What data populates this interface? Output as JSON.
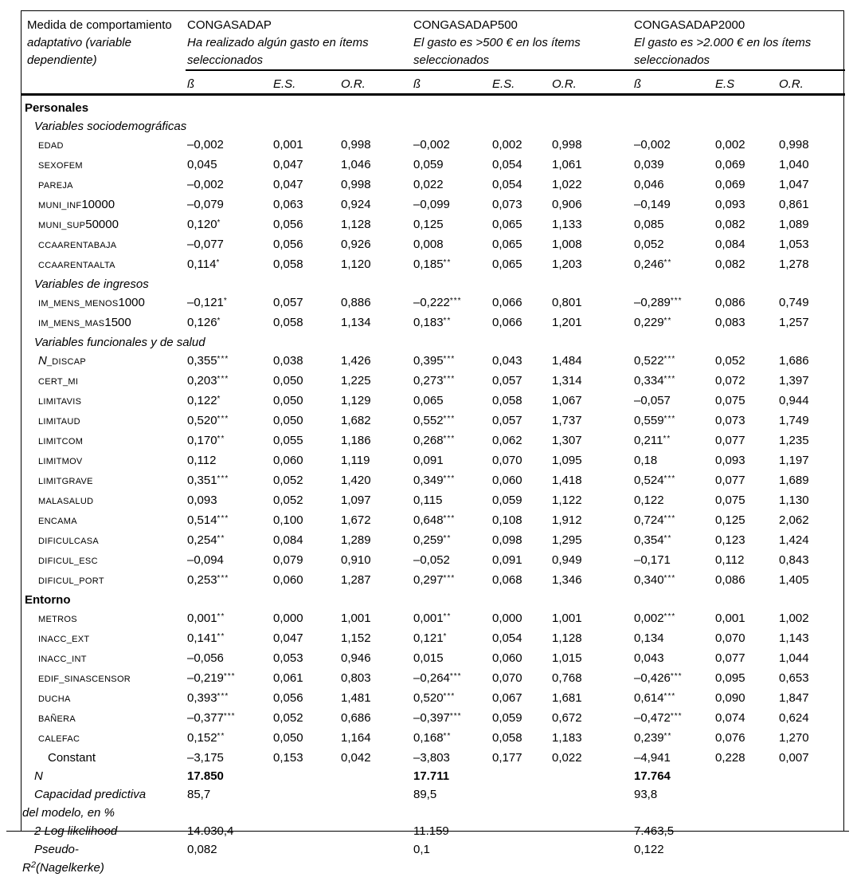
{
  "page": {
    "background": "#ffffff",
    "text_color": "#000000",
    "rule_color": "#000000"
  },
  "table": {
    "stub": {
      "line1": "Medida de comportamiento",
      "line2": "adaptativo (variable",
      "line3": "dependiente)"
    },
    "groups": [
      {
        "name": "CONGASADAP",
        "desc": "Ha realizado algún gasto en ítems seleccionados",
        "col_beta": "ß",
        "col_es": "E.S.",
        "col_or": "O.R."
      },
      {
        "name": "CONGASADAP500",
        "desc": "El gasto es >500 € en los ítems seleccionados",
        "col_beta": "ß",
        "col_es": "E.S.",
        "col_or": "O.R."
      },
      {
        "name": "CONGASADAP2000",
        "desc": "El gasto es >2.000 € en los ítems seleccionados",
        "col_beta": "ß",
        "col_es": "E.S",
        "col_or": "O.R."
      }
    ],
    "rows": [
      {
        "type": "section",
        "label": "Personales"
      },
      {
        "type": "subsection",
        "label": "Variables sociodemográficas"
      },
      {
        "type": "var",
        "label": [
          [
            "sc",
            "EDAD"
          ]
        ],
        "values": [
          "–0,002",
          "0,001",
          "0,998",
          "–0,002",
          "0,002",
          "0,998",
          "–0,002",
          "0,002",
          "0,998"
        ]
      },
      {
        "type": "var",
        "label": [
          [
            "sc",
            "SEXOFEM"
          ]
        ],
        "values": [
          "0,045",
          "0,047",
          "1,046",
          "0,059",
          "0,054",
          "1,061",
          "0,039",
          "0,069",
          "1,040"
        ]
      },
      {
        "type": "var",
        "label": [
          [
            "sc",
            "PAREJA"
          ]
        ],
        "values": [
          "–0,002",
          "0,047",
          "0,998",
          "0,022",
          "0,054",
          "1,022",
          "0,046",
          "0,069",
          "1,047"
        ]
      },
      {
        "type": "var",
        "label": [
          [
            "sc",
            "MUNI_INF"
          ],
          [
            "n",
            "10000"
          ]
        ],
        "values": [
          "–0,079",
          "0,063",
          "0,924",
          "–0,099",
          "0,073",
          "0,906",
          "–0,149",
          "0,093",
          "0,861"
        ]
      },
      {
        "type": "var",
        "label": [
          [
            "sc",
            "MUNI_SUP"
          ],
          [
            "n",
            "50000"
          ]
        ],
        "values": [
          "0,120*",
          "0,056",
          "1,128",
          "0,125",
          "0,065",
          "1,133",
          "0,085",
          "0,082",
          "1,089"
        ]
      },
      {
        "type": "var",
        "label": [
          [
            "sc",
            "CCAARENTABAJA"
          ]
        ],
        "values": [
          "–0,077",
          "0,056",
          "0,926",
          "0,008",
          "0,065",
          "1,008",
          "0,052",
          "0,084",
          "1,053"
        ]
      },
      {
        "type": "var",
        "label": [
          [
            "sc",
            "CCAARENTAALTA"
          ]
        ],
        "values": [
          "0,114*",
          "0,058",
          "1,120",
          "0,185**",
          "0,065",
          "1,203",
          "0,246**",
          "0,082",
          "1,278"
        ]
      },
      {
        "type": "subsection",
        "label": "Variables de ingresos"
      },
      {
        "type": "var",
        "label": [
          [
            "sc",
            "IM_MENS_MENOS"
          ],
          [
            "n",
            "1000"
          ]
        ],
        "values": [
          "–0,121*",
          "0,057",
          "0,886",
          "–0,222***",
          "0,066",
          "0,801",
          "–0,289***",
          "0,086",
          "0,749"
        ]
      },
      {
        "type": "var",
        "label": [
          [
            "sc",
            "IM_MENS_MAS"
          ],
          [
            "n",
            "1500"
          ]
        ],
        "values": [
          "0,126*",
          "0,058",
          "1,134",
          "0,183**",
          "0,066",
          "1,201",
          "0,229**",
          "0,083",
          "1,257"
        ]
      },
      {
        "type": "subsection",
        "label": "Variables funcionales y de salud"
      },
      {
        "type": "var",
        "label": [
          [
            "ni",
            "N"
          ],
          [
            "sc",
            "_DISCAP"
          ]
        ],
        "values": [
          "0,355***",
          "0,038",
          "1,426",
          "0,395***",
          "0,043",
          "1,484",
          "0,522***",
          "0,052",
          "1,686"
        ]
      },
      {
        "type": "var",
        "label": [
          [
            "sc",
            "CERT_MI"
          ]
        ],
        "values": [
          "0,203***",
          "0,050",
          "1,225",
          "0,273***",
          "0,057",
          "1,314",
          "0,334***",
          "0,072",
          "1,397"
        ]
      },
      {
        "type": "var",
        "label": [
          [
            "sc",
            "LIMITAVIS"
          ]
        ],
        "values": [
          "0,122*",
          "0,050",
          "1,129",
          "0,065",
          "0,058",
          "1,067",
          "–0,057",
          "0,075",
          "0,944"
        ]
      },
      {
        "type": "var",
        "label": [
          [
            "sc",
            "LIMITAUD"
          ]
        ],
        "values": [
          "0,520***",
          "0,050",
          "1,682",
          "0,552***",
          "0,057",
          "1,737",
          "0,559***",
          "0,073",
          "1,749"
        ]
      },
      {
        "type": "var",
        "label": [
          [
            "sc",
            "LIMITCOM"
          ]
        ],
        "values": [
          "0,170**",
          "0,055",
          "1,186",
          "0,268***",
          "0,062",
          "1,307",
          "0,211**",
          "0,077",
          "1,235"
        ]
      },
      {
        "type": "var",
        "label": [
          [
            "sc",
            "LIMITMOV"
          ]
        ],
        "values": [
          "0,112",
          "0,060",
          "1,119",
          "0,091",
          "0,070",
          "1,095",
          "0,18",
          "0,093",
          "1,197"
        ]
      },
      {
        "type": "var",
        "label": [
          [
            "sc",
            "LIMITGRAVE"
          ]
        ],
        "values": [
          "0,351***",
          "0,052",
          "1,420",
          "0,349***",
          "0,060",
          "1,418",
          "0,524***",
          "0,077",
          "1,689"
        ]
      },
      {
        "type": "var",
        "label": [
          [
            "sc",
            "MALASALUD"
          ]
        ],
        "values": [
          "0,093",
          "0,052",
          "1,097",
          "0,115",
          "0,059",
          "1,122",
          "0,122",
          "0,075",
          "1,130"
        ]
      },
      {
        "type": "var",
        "label": [
          [
            "sc",
            "ENCAMA"
          ]
        ],
        "values": [
          "0,514***",
          "0,100",
          "1,672",
          "0,648***",
          "0,108",
          "1,912",
          "0,724***",
          "0,125",
          "2,062"
        ]
      },
      {
        "type": "var",
        "label": [
          [
            "sc",
            "DIFICULCASA"
          ]
        ],
        "values": [
          "0,254**",
          "0,084",
          "1,289",
          "0,259**",
          "0,098",
          "1,295",
          "0,354**",
          "0,123",
          "1,424"
        ]
      },
      {
        "type": "var",
        "label": [
          [
            "sc",
            "DIFICUL_ESC"
          ]
        ],
        "values": [
          "–0,094",
          "0,079",
          "0,910",
          "–0,052",
          "0,091",
          "0,949",
          "–0,171",
          "0,112",
          "0,843"
        ]
      },
      {
        "type": "var",
        "label": [
          [
            "sc",
            "DIFICUL_PORT"
          ]
        ],
        "values": [
          "0,253***",
          "0,060",
          "1,287",
          "0,297***",
          "0,068",
          "1,346",
          "0,340***",
          "0,086",
          "1,405"
        ]
      },
      {
        "type": "section",
        "label": "Entorno"
      },
      {
        "type": "var",
        "label": [
          [
            "sc",
            "METROS"
          ]
        ],
        "values": [
          "0,001**",
          "0,000",
          "1,001",
          "0,001**",
          "0,000",
          "1,001",
          "0,002***",
          "0,001",
          "1,002"
        ]
      },
      {
        "type": "var",
        "label": [
          [
            "sc",
            "INACC_EXT"
          ]
        ],
        "values": [
          "0,141**",
          "0,047",
          "1,152",
          "0,121*",
          "0,054",
          "1,128",
          "0,134",
          "0,070",
          "1,143"
        ]
      },
      {
        "type": "var",
        "label": [
          [
            "sc",
            "INACC_INT"
          ]
        ],
        "values": [
          "–0,056",
          "0,053",
          "0,946",
          "0,015",
          "0,060",
          "1,015",
          "0,043",
          "0,077",
          "1,044"
        ]
      },
      {
        "type": "var",
        "label": [
          [
            "sc",
            "EDIF_SINASCENSOR"
          ]
        ],
        "values": [
          "–0,219***",
          "0,061",
          "0,803",
          "–0,264***",
          "0,070",
          "0,768",
          "–0,426***",
          "0,095",
          "0,653"
        ]
      },
      {
        "type": "var",
        "label": [
          [
            "sc",
            "DUCHA"
          ]
        ],
        "values": [
          "0,393***",
          "0,056",
          "1,481",
          "0,520***",
          "0,067",
          "1,681",
          "0,614***",
          "0,090",
          "1,847"
        ]
      },
      {
        "type": "var",
        "label": [
          [
            "sc",
            "BAÑERA"
          ]
        ],
        "values": [
          "–0,377***",
          "0,052",
          "0,686",
          "–0,397***",
          "0,059",
          "0,672",
          "–0,472***",
          "0,074",
          "0,624"
        ]
      },
      {
        "type": "var",
        "label": [
          [
            "sc",
            "CALEFAC"
          ]
        ],
        "values": [
          "0,152**",
          "0,050",
          "1,164",
          "0,168**",
          "0,058",
          "1,183",
          "0,239**",
          "0,076",
          "1,270"
        ]
      },
      {
        "type": "constant",
        "label": "Constant",
        "values": [
          "–3,175",
          "0,153",
          "0,042",
          "–3,803",
          "0,177",
          "0,022",
          "–4,941",
          "0,228",
          "0,007"
        ]
      },
      {
        "type": "stat",
        "bold": true,
        "label": "N",
        "values": [
          "17.850",
          "",
          "",
          "17.711",
          "",
          "",
          "17.764",
          "",
          ""
        ]
      },
      {
        "type": "stat",
        "label": "Capacidad predictiva",
        "label2": "del modelo, en %",
        "values": [
          "85,7",
          "",
          "",
          "89,5",
          "",
          "",
          "93,8",
          "",
          ""
        ]
      },
      {
        "type": "stat",
        "label": "2 Log likelihood",
        "values": [
          "14.030,4",
          "",
          "",
          "11.159",
          "",
          "",
          "7.463,5",
          "",
          ""
        ]
      },
      {
        "type": "stat",
        "label": "Pseudo-",
        "label2": "R²(Nagelkerke)",
        "values": [
          "0,082",
          "",
          "",
          "0,1",
          "",
          "",
          "0,122",
          "",
          ""
        ]
      }
    ]
  }
}
